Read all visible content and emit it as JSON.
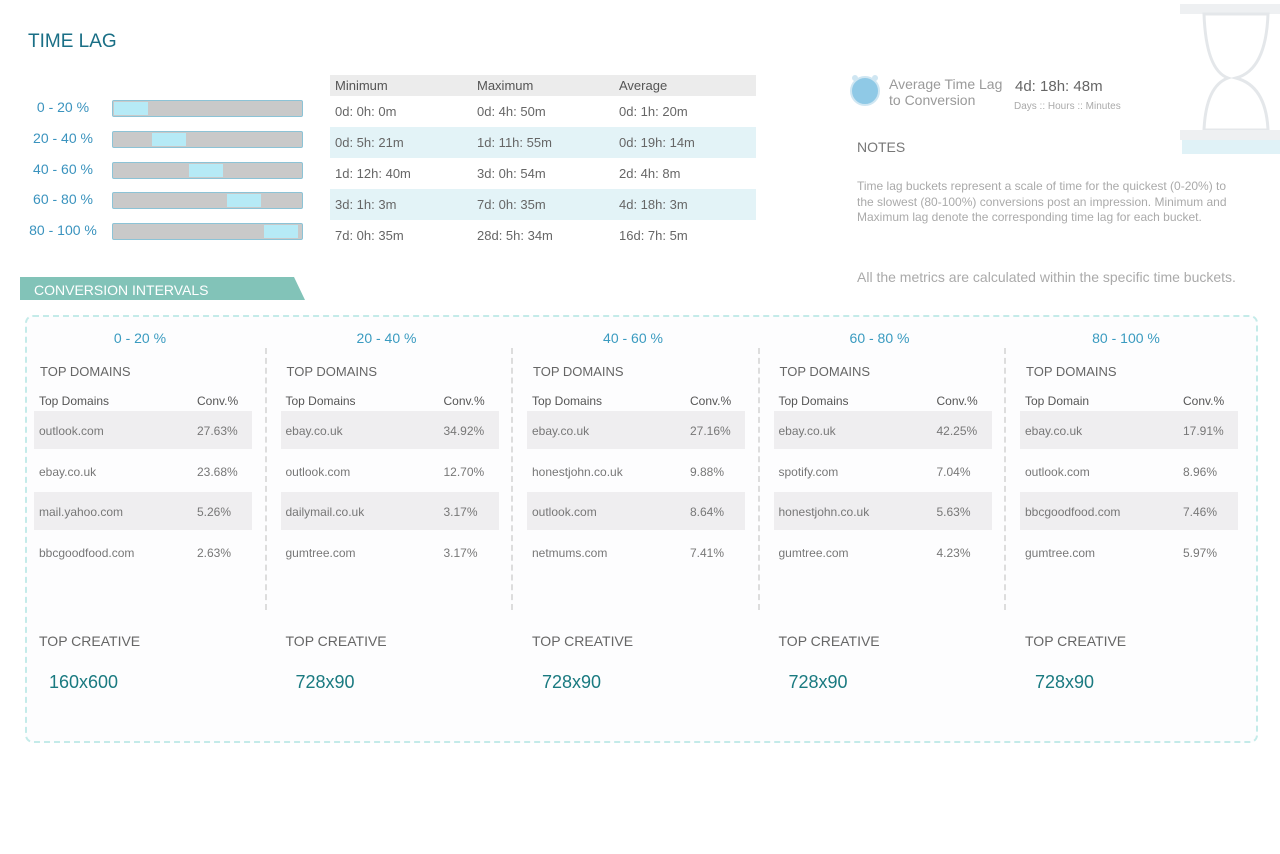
{
  "header": {
    "title": "TIME LAG"
  },
  "buckets": [
    "0 - 20 %",
    "20 - 40 %",
    "40 - 60 %",
    "60 - 80 %",
    "80 - 100 %"
  ],
  "table": {
    "columns": [
      "Minimum",
      "Maximum",
      "Average"
    ],
    "rows": [
      [
        "0d: 0h: 0m",
        "0d: 4h: 50m",
        "0d: 1h: 20m"
      ],
      [
        "0d: 5h: 21m",
        "1d: 11h: 55m",
        "0d: 19h: 14m"
      ],
      [
        "1d: 12h: 40m",
        "3d: 0h: 54m",
        "2d: 4h: 8m"
      ],
      [
        "3d: 1h: 3m",
        "7d: 0h: 35m",
        "4d: 18h: 3m"
      ],
      [
        "7d: 0h: 35m",
        "28d: 5h: 34m",
        "16d: 7h: 5m"
      ]
    ]
  },
  "average": {
    "label": "Average Time Lag to Conversion",
    "value": "4d: 18h: 48m",
    "units": "Days :: Hours :: Minutes"
  },
  "notes": {
    "title": "NOTES",
    "text": "Time lag buckets represent a scale of time for the quickest (0-20%) to the slowest (80-100%) conversions post an impression. Minimum and Maximum lag denote the corresponding time lag for each bucket.",
    "footer": "All the metrics are calculated within the specific time buckets."
  },
  "section": {
    "title": "CONVERSION INTERVALS"
  },
  "intervals": [
    {
      "title": "0 - 20 %",
      "heading": "TOP DOMAINS",
      "columns": [
        "Top Domains",
        "Conv.%"
      ],
      "rows": [
        [
          "outlook.com",
          "27.63%"
        ],
        [
          "ebay.co.uk",
          "23.68%"
        ],
        [
          "mail.yahoo.com",
          "5.26%"
        ],
        [
          "bbcgoodfood.com",
          "2.63%"
        ]
      ],
      "creative_title": "TOP CREATIVE",
      "creative": "160x600"
    },
    {
      "title": "20 - 40 %",
      "heading": "TOP DOMAINS",
      "columns": [
        "Top Domains",
        "Conv.%"
      ],
      "rows": [
        [
          "ebay.co.uk",
          "34.92%"
        ],
        [
          "outlook.com",
          "12.70%"
        ],
        [
          "dailymail.co.uk",
          "3.17%"
        ],
        [
          "gumtree.com",
          "3.17%"
        ]
      ],
      "creative_title": "TOP CREATIVE",
      "creative": "728x90"
    },
    {
      "title": "40 - 60 %",
      "heading": "TOP DOMAINS",
      "columns": [
        "Top Domains",
        "Conv.%"
      ],
      "rows": [
        [
          "ebay.co.uk",
          "27.16%"
        ],
        [
          "honestjohn.co.uk",
          "9.88%"
        ],
        [
          "outlook.com",
          "8.64%"
        ],
        [
          "netmums.com",
          "7.41%"
        ]
      ],
      "creative_title": "TOP CREATIVE",
      "creative": "728x90"
    },
    {
      "title": "60 - 80 %",
      "heading": "TOP DOMAINS",
      "columns": [
        "Top Domains",
        "Conv.%"
      ],
      "rows": [
        [
          "ebay.co.uk",
          "42.25%"
        ],
        [
          "spotify.com",
          "7.04%"
        ],
        [
          "honestjohn.co.uk",
          "5.63%"
        ],
        [
          "gumtree.com",
          "4.23%"
        ]
      ],
      "creative_title": "TOP CREATIVE",
      "creative": "728x90"
    },
    {
      "title": "80 - 100 %",
      "heading": "TOP DOMAINS",
      "columns": [
        "Top Domain",
        "Conv.%"
      ],
      "rows": [
        [
          "ebay.co.uk",
          "17.91%"
        ],
        [
          "outlook.com",
          "8.96%"
        ],
        [
          "bbcgoodfood.com",
          "7.46%"
        ],
        [
          "gumtree.com",
          "5.97%"
        ]
      ],
      "creative_title": "TOP CREATIVE",
      "creative": "728x90"
    }
  ]
}
